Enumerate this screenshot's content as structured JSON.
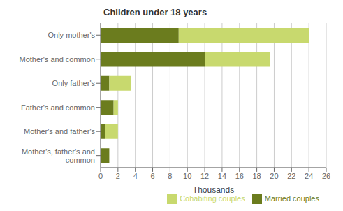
{
  "chart_data": {
    "type": "bar",
    "title": "Children under 18 years",
    "orientation": "horizontal",
    "stacked": true,
    "categories": [
      "Only mother's",
      "Mother's and common",
      "Only father's",
      "Father's and common",
      "Mother's and father's",
      "Mother's, father's and\ncommon"
    ],
    "series": [
      {
        "name": "Married couples",
        "color": "#6b7c1e",
        "values": [
          9.0,
          12.0,
          1.0,
          1.5,
          0.5,
          1.0
        ]
      },
      {
        "name": "Cohabiting couples",
        "color": "#c8d96e",
        "values": [
          15.0,
          7.5,
          2.5,
          0.5,
          1.5,
          0.0
        ]
      }
    ],
    "xlabel": "Thousands",
    "xlim": [
      0,
      26
    ],
    "xticks": [
      0,
      2,
      4,
      6,
      8,
      10,
      12,
      14,
      16,
      18,
      20,
      22,
      24,
      26
    ],
    "grid": true,
    "legend": "lower right"
  }
}
